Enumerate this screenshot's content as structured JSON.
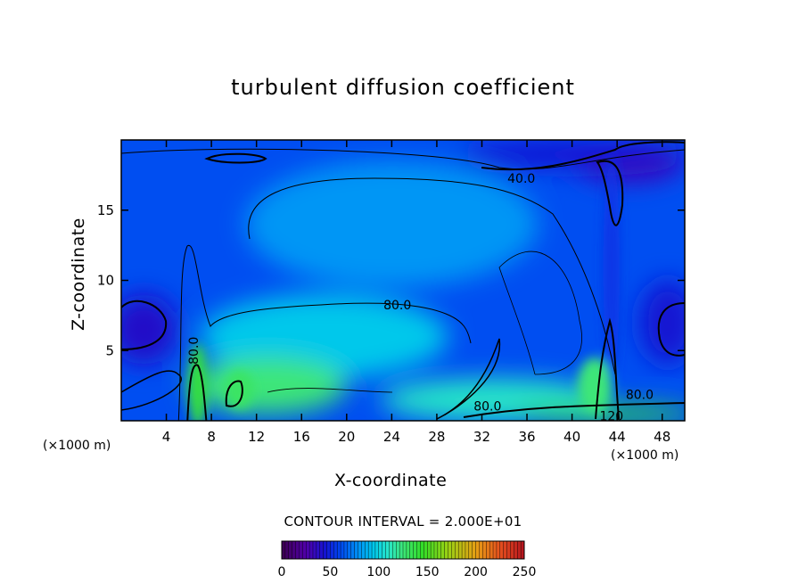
{
  "chart_data": {
    "type": "heatmap",
    "title": "turbulent diffusion coefficient",
    "xlabel": "X-coordinate",
    "ylabel": "Z-coordinate",
    "x_unit_label": "(×1000 m)",
    "x_unit_label_right": "(×1000 m)",
    "xlim": [
      0,
      50
    ],
    "ylim": [
      0,
      20
    ],
    "xticks": [
      4,
      8,
      12,
      16,
      20,
      24,
      28,
      32,
      36,
      40,
      44,
      48
    ],
    "yticks": [
      5,
      10,
      15
    ],
    "contour_interval_text": "CONTOUR INTERVAL = 2.000E+01",
    "contour_labels": [
      {
        "text": "40.0",
        "x": 35.5,
        "y": 17.2
      },
      {
        "text": "80.0",
        "x": 24.5,
        "y": 8.2
      },
      {
        "text": "80.0",
        "x": 6.5,
        "y": 5.0,
        "rotated": true
      },
      {
        "text": "80.0",
        "x": 32.5,
        "y": 1.0
      },
      {
        "text": "80.0",
        "x": 46.0,
        "y": 1.8
      },
      {
        "text": "120",
        "x": 43.5,
        "y": 0.3
      }
    ],
    "colorbar": {
      "min": 0,
      "max": 250,
      "ticks": [
        0,
        50,
        100,
        150,
        200,
        250
      ]
    },
    "field_regions": [
      {
        "value": 30,
        "x": 45,
        "y": 18.5,
        "w": 10,
        "h": 3
      },
      {
        "value": 45,
        "x": 40,
        "y": 19,
        "w": 20,
        "h": 2
      },
      {
        "value": 40,
        "x": 2,
        "y": 6.5,
        "w": 6,
        "h": 5
      },
      {
        "value": 45,
        "x": 48.5,
        "y": 7,
        "w": 5,
        "h": 6
      },
      {
        "value": 60,
        "x": 27,
        "y": 15,
        "w": 18,
        "h": 7
      },
      {
        "value": 80,
        "x": 24,
        "y": 14,
        "w": 26,
        "h": 9
      },
      {
        "value": 95,
        "x": 18,
        "y": 6,
        "w": 22,
        "h": 6
      },
      {
        "value": 125,
        "x": 13,
        "y": 2.5,
        "w": 14,
        "h": 4
      },
      {
        "value": 140,
        "x": 6.8,
        "y": 2.5,
        "w": 1.6,
        "h": 6
      },
      {
        "value": 130,
        "x": 10.5,
        "y": 2.2,
        "w": 2.5,
        "h": 2.8
      },
      {
        "value": 110,
        "x": 33,
        "y": 1.5,
        "w": 20,
        "h": 3
      },
      {
        "value": 140,
        "x": 43,
        "y": 0.5,
        "w": 16,
        "h": 1.2
      },
      {
        "value": 125,
        "x": 42,
        "y": 2.5,
        "w": 3,
        "h": 4
      },
      {
        "value": 55,
        "x": 43.5,
        "y": 11,
        "w": 1.5,
        "h": 16
      }
    ]
  }
}
